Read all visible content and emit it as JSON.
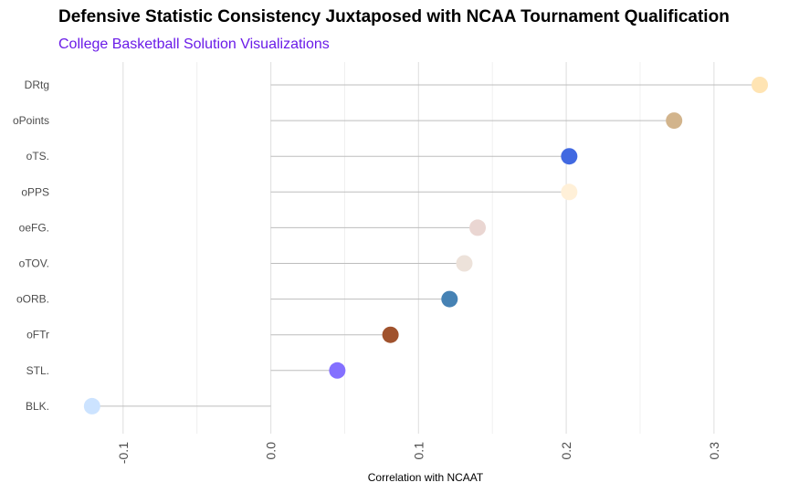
{
  "chart_data": {
    "type": "lollipop",
    "title": "Defensive Statistic Consistency Juxtaposed with NCAA Tournament Qualification",
    "subtitle": "College Basketball Solution Visualizations",
    "subtitle_color": "#6a1be8",
    "xlabel": "Correlation with NCAAT",
    "ylabel": "",
    "xlim": [
      -0.145,
      0.352
    ],
    "x_ticks": [
      -0.1,
      0.0,
      0.1,
      0.2,
      0.3
    ],
    "x_tick_labels": [
      "-0.1",
      "0.0",
      "0.1",
      "0.2",
      "0.3"
    ],
    "x_minor_ticks": [
      -0.05,
      0.05,
      0.15,
      0.25
    ],
    "grid": true,
    "baseline": 0.0,
    "categories": [
      "DRtg",
      "oPoints",
      "oTS.",
      "oPPS",
      "oeFG.",
      "oTOV.",
      "oORB.",
      "oFTr",
      "STL.",
      "BLK."
    ],
    "values": [
      0.331,
      0.273,
      0.202,
      0.202,
      0.14,
      0.131,
      0.121,
      0.081,
      0.045,
      -0.121
    ],
    "colors": [
      "#ffe4b3",
      "#d2b48c",
      "#4169e1",
      "#fff0d8",
      "#ead6d2",
      "#ede2da",
      "#4682b4",
      "#a0522d",
      "#8470ff",
      "#cce3ff"
    ]
  }
}
